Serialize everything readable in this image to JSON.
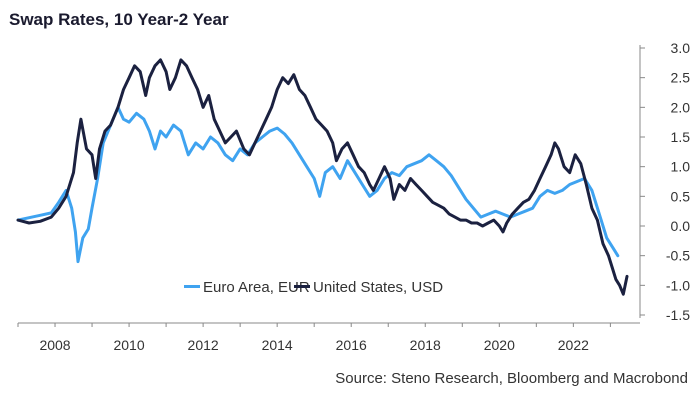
{
  "chart_data": {
    "type": "line",
    "title": "Swap Rates, 10 Year-2 Year",
    "source": "Source: Steno Research, Bloomberg and Macrobond",
    "xlim": [
      2007.0,
      2023.8
    ],
    "ylim": [
      -1.5,
      3.0
    ],
    "x_ticks": [
      2008,
      2010,
      2012,
      2014,
      2016,
      2018,
      2020,
      2022
    ],
    "y_ticks": [
      3.0,
      2.5,
      2.0,
      1.5,
      1.0,
      0.5,
      0.0,
      -0.5,
      -1.0,
      -1.5
    ],
    "y_tick_labels": [
      "3.0",
      "2.5",
      "2.0",
      "1.5",
      "1.0",
      "0.5",
      "0.0",
      "-0.5",
      "-1.0",
      "-1.5"
    ],
    "grid": false,
    "legend": "bottom-center",
    "series": [
      {
        "name": "Euro Area, EUR",
        "color": "#3fa3f0",
        "points": [
          [
            2007.0,
            0.1
          ],
          [
            2007.3,
            0.14
          ],
          [
            2007.6,
            0.18
          ],
          [
            2007.9,
            0.22
          ],
          [
            2008.1,
            0.4
          ],
          [
            2008.3,
            0.6
          ],
          [
            2008.45,
            0.3
          ],
          [
            2008.55,
            -0.1
          ],
          [
            2008.62,
            -0.6
          ],
          [
            2008.75,
            -0.2
          ],
          [
            2008.9,
            -0.05
          ],
          [
            2009.0,
            0.3
          ],
          [
            2009.15,
            0.8
          ],
          [
            2009.3,
            1.4
          ],
          [
            2009.5,
            1.7
          ],
          [
            2009.7,
            2.0
          ],
          [
            2009.85,
            1.8
          ],
          [
            2010.0,
            1.75
          ],
          [
            2010.2,
            1.9
          ],
          [
            2010.4,
            1.8
          ],
          [
            2010.55,
            1.6
          ],
          [
            2010.7,
            1.3
          ],
          [
            2010.85,
            1.6
          ],
          [
            2011.0,
            1.5
          ],
          [
            2011.2,
            1.7
          ],
          [
            2011.4,
            1.6
          ],
          [
            2011.6,
            1.2
          ],
          [
            2011.8,
            1.4
          ],
          [
            2012.0,
            1.3
          ],
          [
            2012.2,
            1.5
          ],
          [
            2012.4,
            1.4
          ],
          [
            2012.6,
            1.2
          ],
          [
            2012.8,
            1.1
          ],
          [
            2013.0,
            1.3
          ],
          [
            2013.2,
            1.2
          ],
          [
            2013.4,
            1.4
          ],
          [
            2013.6,
            1.5
          ],
          [
            2013.8,
            1.6
          ],
          [
            2014.0,
            1.65
          ],
          [
            2014.2,
            1.55
          ],
          [
            2014.4,
            1.4
          ],
          [
            2014.6,
            1.2
          ],
          [
            2014.8,
            1.0
          ],
          [
            2015.0,
            0.8
          ],
          [
            2015.15,
            0.5
          ],
          [
            2015.3,
            0.9
          ],
          [
            2015.5,
            1.0
          ],
          [
            2015.7,
            0.8
          ],
          [
            2015.9,
            1.1
          ],
          [
            2016.1,
            0.9
          ],
          [
            2016.3,
            0.7
          ],
          [
            2016.5,
            0.5
          ],
          [
            2016.7,
            0.6
          ],
          [
            2016.9,
            0.8
          ],
          [
            2017.1,
            0.9
          ],
          [
            2017.3,
            0.85
          ],
          [
            2017.5,
            1.0
          ],
          [
            2017.7,
            1.05
          ],
          [
            2017.9,
            1.1
          ],
          [
            2018.1,
            1.2
          ],
          [
            2018.3,
            1.1
          ],
          [
            2018.5,
            1.0
          ],
          [
            2018.7,
            0.85
          ],
          [
            2018.9,
            0.65
          ],
          [
            2019.1,
            0.45
          ],
          [
            2019.3,
            0.3
          ],
          [
            2019.5,
            0.15
          ],
          [
            2019.7,
            0.2
          ],
          [
            2019.9,
            0.25
          ],
          [
            2020.1,
            0.2
          ],
          [
            2020.3,
            0.15
          ],
          [
            2020.5,
            0.2
          ],
          [
            2020.7,
            0.25
          ],
          [
            2020.9,
            0.3
          ],
          [
            2021.1,
            0.5
          ],
          [
            2021.3,
            0.6
          ],
          [
            2021.5,
            0.55
          ],
          [
            2021.7,
            0.6
          ],
          [
            2021.9,
            0.7
          ],
          [
            2022.1,
            0.75
          ],
          [
            2022.3,
            0.8
          ],
          [
            2022.5,
            0.6
          ],
          [
            2022.7,
            0.2
          ],
          [
            2022.9,
            -0.2
          ],
          [
            2023.1,
            -0.4
          ],
          [
            2023.2,
            -0.5
          ]
        ]
      },
      {
        "name": "United States, USD",
        "color": "#1b2140",
        "points": [
          [
            2007.0,
            0.1
          ],
          [
            2007.3,
            0.05
          ],
          [
            2007.6,
            0.08
          ],
          [
            2007.9,
            0.15
          ],
          [
            2008.1,
            0.3
          ],
          [
            2008.3,
            0.5
          ],
          [
            2008.5,
            0.9
          ],
          [
            2008.6,
            1.4
          ],
          [
            2008.7,
            1.8
          ],
          [
            2008.85,
            1.3
          ],
          [
            2009.0,
            1.2
          ],
          [
            2009.1,
            0.8
          ],
          [
            2009.2,
            1.3
          ],
          [
            2009.35,
            1.6
          ],
          [
            2009.5,
            1.7
          ],
          [
            2009.7,
            2.0
          ],
          [
            2009.85,
            2.3
          ],
          [
            2010.0,
            2.5
          ],
          [
            2010.15,
            2.7
          ],
          [
            2010.3,
            2.6
          ],
          [
            2010.45,
            2.2
          ],
          [
            2010.55,
            2.5
          ],
          [
            2010.7,
            2.7
          ],
          [
            2010.85,
            2.8
          ],
          [
            2011.0,
            2.6
          ],
          [
            2011.1,
            2.3
          ],
          [
            2011.25,
            2.5
          ],
          [
            2011.4,
            2.8
          ],
          [
            2011.55,
            2.7
          ],
          [
            2011.7,
            2.5
          ],
          [
            2011.85,
            2.3
          ],
          [
            2012.0,
            2.0
          ],
          [
            2012.15,
            2.2
          ],
          [
            2012.3,
            1.8
          ],
          [
            2012.45,
            1.6
          ],
          [
            2012.6,
            1.4
          ],
          [
            2012.75,
            1.5
          ],
          [
            2012.9,
            1.6
          ],
          [
            2013.1,
            1.3
          ],
          [
            2013.25,
            1.2
          ],
          [
            2013.4,
            1.4
          ],
          [
            2013.55,
            1.6
          ],
          [
            2013.7,
            1.8
          ],
          [
            2013.85,
            2.0
          ],
          [
            2014.0,
            2.3
          ],
          [
            2014.15,
            2.5
          ],
          [
            2014.3,
            2.4
          ],
          [
            2014.45,
            2.55
          ],
          [
            2014.6,
            2.3
          ],
          [
            2014.75,
            2.2
          ],
          [
            2014.9,
            2.0
          ],
          [
            2015.05,
            1.8
          ],
          [
            2015.2,
            1.7
          ],
          [
            2015.35,
            1.6
          ],
          [
            2015.5,
            1.4
          ],
          [
            2015.6,
            1.1
          ],
          [
            2015.75,
            1.3
          ],
          [
            2015.9,
            1.4
          ],
          [
            2016.05,
            1.2
          ],
          [
            2016.2,
            1.0
          ],
          [
            2016.35,
            0.9
          ],
          [
            2016.5,
            0.7
          ],
          [
            2016.6,
            0.6
          ],
          [
            2016.75,
            0.8
          ],
          [
            2016.9,
            1.0
          ],
          [
            2017.05,
            0.8
          ],
          [
            2017.15,
            0.45
          ],
          [
            2017.3,
            0.7
          ],
          [
            2017.45,
            0.6
          ],
          [
            2017.6,
            0.8
          ],
          [
            2017.75,
            0.7
          ],
          [
            2017.9,
            0.6
          ],
          [
            2018.05,
            0.5
          ],
          [
            2018.2,
            0.4
          ],
          [
            2018.35,
            0.35
          ],
          [
            2018.5,
            0.3
          ],
          [
            2018.65,
            0.2
          ],
          [
            2018.8,
            0.15
          ],
          [
            2018.95,
            0.1
          ],
          [
            2019.1,
            0.1
          ],
          [
            2019.25,
            0.05
          ],
          [
            2019.4,
            0.05
          ],
          [
            2019.55,
            0.0
          ],
          [
            2019.7,
            0.05
          ],
          [
            2019.85,
            0.1
          ],
          [
            2020.0,
            0.0
          ],
          [
            2020.1,
            -0.1
          ],
          [
            2020.2,
            0.05
          ],
          [
            2020.35,
            0.2
          ],
          [
            2020.5,
            0.3
          ],
          [
            2020.65,
            0.4
          ],
          [
            2020.8,
            0.45
          ],
          [
            2020.95,
            0.6
          ],
          [
            2021.1,
            0.8
          ],
          [
            2021.25,
            1.0
          ],
          [
            2021.4,
            1.2
          ],
          [
            2021.5,
            1.4
          ],
          [
            2021.6,
            1.3
          ],
          [
            2021.75,
            1.0
          ],
          [
            2021.9,
            0.9
          ],
          [
            2022.05,
            1.2
          ],
          [
            2022.2,
            1.05
          ],
          [
            2022.35,
            0.7
          ],
          [
            2022.5,
            0.3
          ],
          [
            2022.65,
            0.1
          ],
          [
            2022.8,
            -0.3
          ],
          [
            2022.95,
            -0.5
          ],
          [
            2023.05,
            -0.7
          ],
          [
            2023.15,
            -0.9
          ],
          [
            2023.25,
            -1.0
          ],
          [
            2023.35,
            -1.15
          ],
          [
            2023.45,
            -0.85
          ]
        ]
      }
    ]
  }
}
